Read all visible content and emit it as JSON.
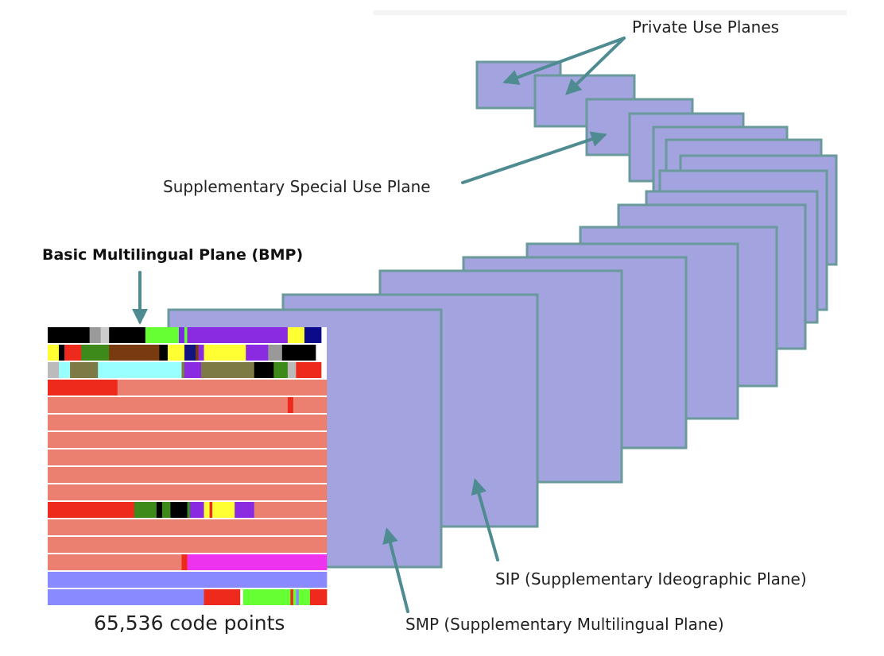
{
  "labels": {
    "private_use": "Private Use Planes",
    "ssp": "Supplementary Special Use Plane",
    "bmp_title": "Basic Multilingual Plane (BMP)",
    "code_points": "65,536 code points",
    "sip": "SIP (Supplementary Ideographic Plane)",
    "smp": "SMP (Supplementary Multilingual Plane)"
  },
  "colors": {
    "plane_fill": "#a3a3df",
    "plane_border": "#6a9a9b",
    "arrow": "#4f8c91",
    "bmp_base": "#ec8070",
    "bmp_red": "#ee2a1c"
  },
  "bmp_rows": [
    [
      [
        "#000000",
        15
      ],
      [
        "#9a9a9a",
        4
      ],
      [
        "#cccccc",
        3
      ],
      [
        "#000000",
        13
      ],
      [
        "#66ff33",
        12
      ],
      [
        "#7a2be2",
        2
      ],
      [
        "#66ff33",
        1
      ],
      [
        "#8a2be2",
        36
      ],
      [
        "#ffff33",
        6
      ],
      [
        "#0a0a8a",
        6
      ]
    ],
    [
      [
        "#ffff33",
        4
      ],
      [
        "#000000",
        2
      ],
      [
        "#ee2a1c",
        6
      ],
      [
        "#3d8a1a",
        10
      ],
      [
        "#7a3a10",
        18
      ],
      [
        "#000000",
        3
      ],
      [
        "#ffff33",
        6
      ],
      [
        "#141480",
        4
      ],
      [
        "#7a3a10",
        1
      ],
      [
        "#8a2be2",
        2
      ],
      [
        "#ffff33",
        15
      ],
      [
        "#8a2be2",
        8
      ],
      [
        "#999999",
        5
      ],
      [
        "#000000",
        12
      ]
    ],
    [
      [
        "#bbbbbb",
        4
      ],
      [
        "#99ffff",
        4
      ],
      [
        "#7d7a45",
        10
      ],
      [
        "#99ffff",
        30
      ],
      [
        "#7d7a45",
        1
      ],
      [
        "#8a2be2",
        6
      ],
      [
        "#7d7a45",
        19
      ],
      [
        "#000000",
        7
      ],
      [
        "#3d8a1a",
        5
      ],
      [
        "#bbbbbb",
        3
      ],
      [
        "#ee2a1c",
        9
      ]
    ],
    [
      [
        "#ee2a1c",
        25
      ],
      [
        "#ec8070",
        75
      ]
    ],
    [
      [
        "#ec8070",
        86
      ],
      [
        "#ee2a1c",
        2
      ],
      [
        "#ec8070",
        12
      ]
    ],
    [
      [
        "#ec8070",
        100
      ]
    ],
    [
      [
        "#ec8070",
        100
      ]
    ],
    [
      [
        "#ec8070",
        100
      ]
    ],
    [
      [
        "#ec8070",
        100
      ]
    ],
    [
      [
        "#ec8070",
        100
      ]
    ],
    [
      [
        "#ee2a1c",
        31
      ],
      [
        "#3d8a1a",
        8
      ],
      [
        "#000000",
        2
      ],
      [
        "#3d8a1a",
        3
      ],
      [
        "#000000",
        6
      ],
      [
        "#3d8a1a",
        1
      ],
      [
        "#8a2be2",
        5
      ],
      [
        "#ffff33",
        2
      ],
      [
        "#ee2a1c",
        1
      ],
      [
        "#ffff33",
        8
      ],
      [
        "#8a2be2",
        7
      ],
      [
        "#ec8070",
        26
      ]
    ],
    [
      [
        "#ec8070",
        100
      ]
    ],
    [
      [
        "#ec8070",
        100
      ]
    ],
    [
      [
        "#ec8070",
        48
      ],
      [
        "#ee2a1c",
        2
      ],
      [
        "#ee33ee",
        50
      ]
    ],
    [
      [
        "#8a8aff",
        100
      ]
    ],
    [
      [
        "#8a8aff",
        56
      ],
      [
        "#ee2a1c",
        13
      ],
      [
        "#ffffff",
        1
      ],
      [
        "#66ff33",
        17
      ],
      [
        "#ee2a1c",
        1
      ],
      [
        "#66ff33",
        1
      ],
      [
        "#8a8aff",
        1
      ],
      [
        "#66ff33",
        4
      ],
      [
        "#ee2a1c",
        6
      ]
    ]
  ]
}
